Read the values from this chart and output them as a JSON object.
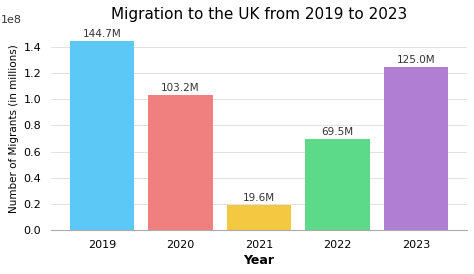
{
  "title": "Migration to the UK from 2019 to 2023",
  "xlabel": "Year",
  "ylabel": "Number of Migrants (in millions)",
  "categories": [
    "2019",
    "2020",
    "2021",
    "2022",
    "2023"
  ],
  "values": [
    144700000,
    103200000,
    19600000,
    69500000,
    125000000
  ],
  "labels": [
    "144.7M",
    "103.2M",
    "19.6M",
    "69.5M",
    "125.0M"
  ],
  "bar_colors": [
    "#5bc8f5",
    "#f07f7f",
    "#f5c842",
    "#5dd98a",
    "#b07fd4"
  ],
  "background_color": "#ffffff",
  "ylim": [
    0,
    155000000.0
  ],
  "title_fontsize": 11,
  "label_fontsize": 7.5,
  "axis_label_fontsize": 9,
  "tick_fontsize": 8,
  "bar_width": 0.82
}
